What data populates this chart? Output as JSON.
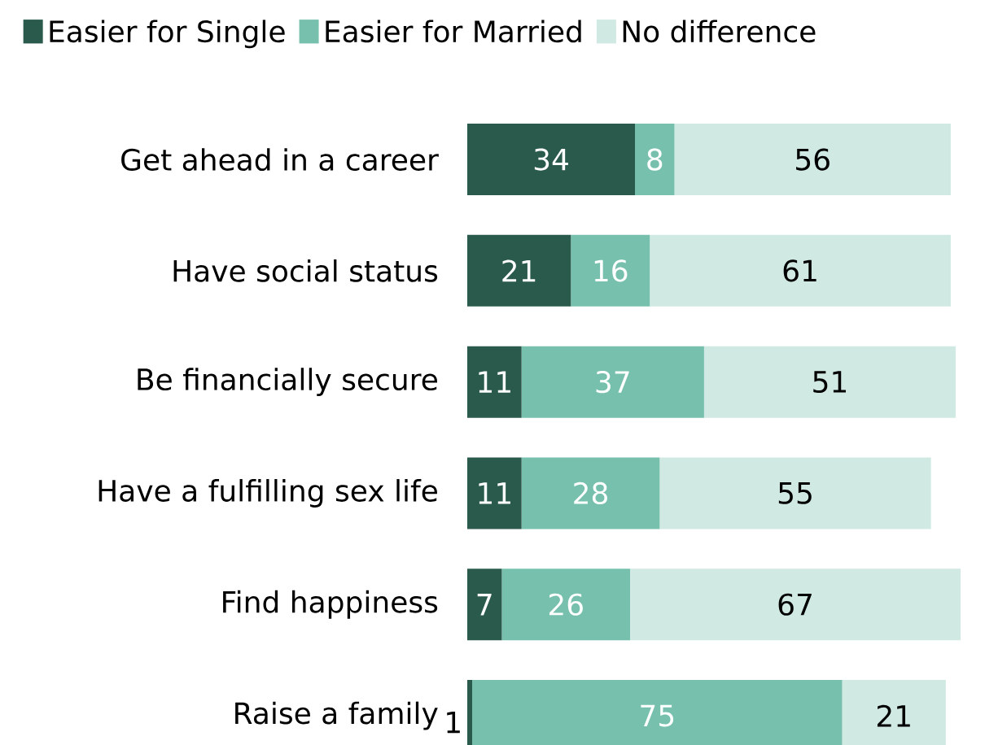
{
  "chart_data": {
    "type": "bar",
    "orientation": "horizontal",
    "stacked": true,
    "data_labels": true,
    "legend": "top left",
    "categories": [
      "Get ahead in a career",
      "Have social status",
      "Be financially secure",
      "Have a fulfilling sex life",
      "Find happiness",
      "Raise a family"
    ],
    "xlim": [
      0,
      100
    ],
    "series": [
      {
        "name": "Easier for Single",
        "color": "#2a5a4c",
        "values": [
          34,
          21,
          11,
          11,
          7,
          1
        ]
      },
      {
        "name": "Easier for Married",
        "color": "#76c0ad",
        "values": [
          8,
          16,
          37,
          28,
          26,
          75
        ]
      },
      {
        "name": "No difference",
        "color": "#d0e9e3",
        "values": [
          56,
          61,
          51,
          55,
          67,
          21
        ]
      }
    ]
  }
}
